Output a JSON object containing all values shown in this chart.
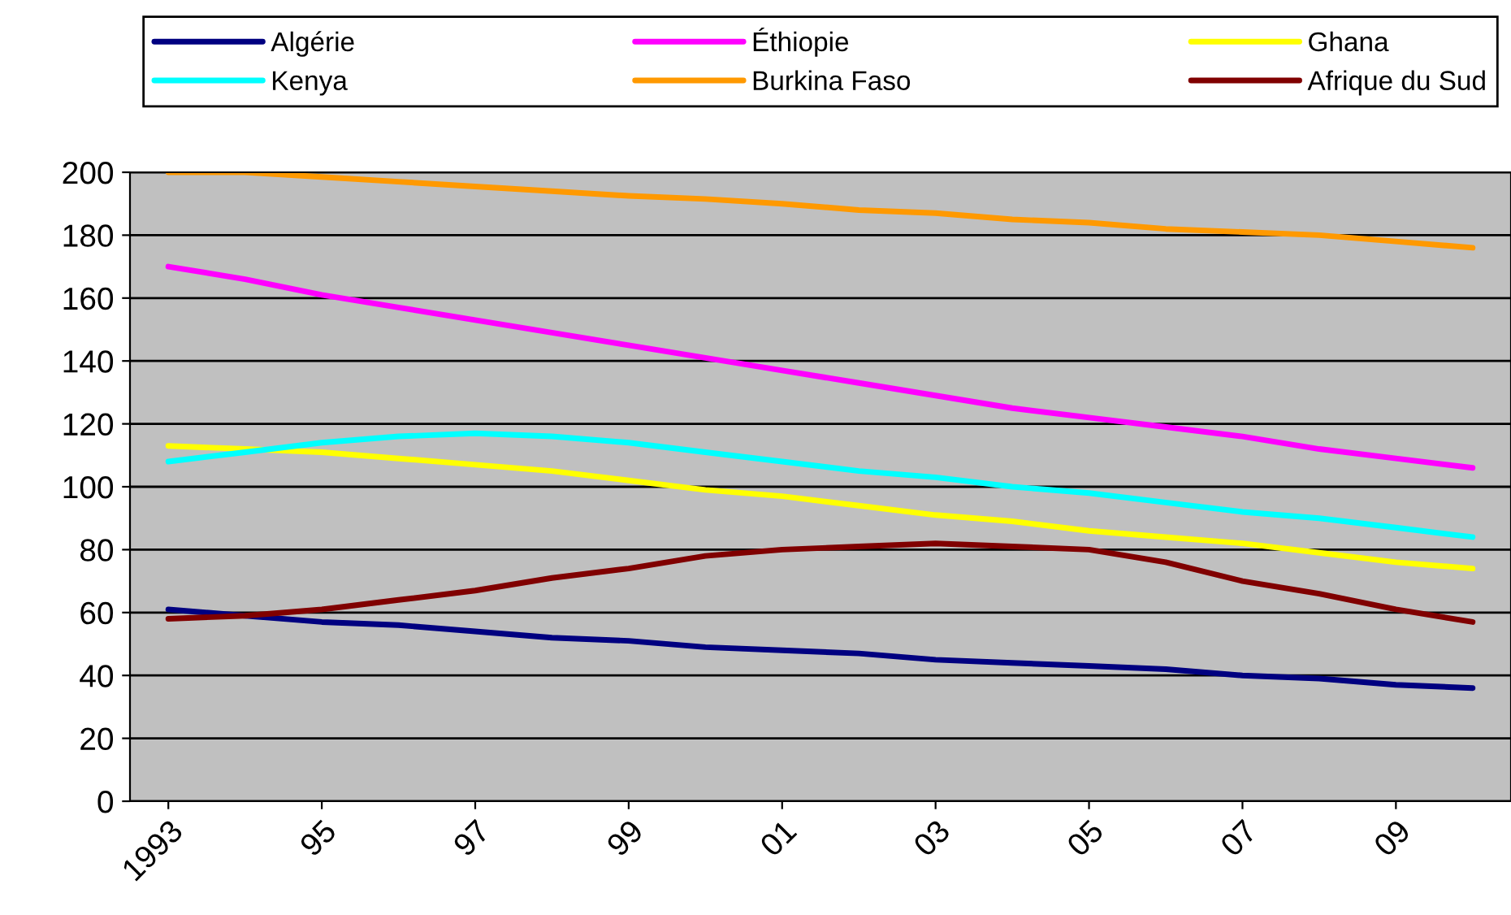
{
  "chart_data": {
    "type": "line",
    "categories": [
      "1993",
      null,
      "95",
      null,
      "97",
      null,
      "99",
      null,
      "01",
      null,
      "03",
      null,
      "05",
      null,
      "07",
      null,
      "09",
      null
    ],
    "ylim": [
      0,
      200
    ],
    "yticks": [
      0,
      20,
      40,
      60,
      80,
      100,
      120,
      140,
      160,
      180,
      200
    ],
    "grid": "y",
    "legend": "top",
    "marker": "none",
    "line_style": "solid",
    "series": [
      {
        "name": "Algérie",
        "color": "#000080",
        "values": [
          61,
          59,
          57,
          56,
          54,
          52,
          51,
          49,
          48,
          47,
          45,
          44,
          43,
          42,
          40,
          39,
          37,
          36
        ]
      },
      {
        "name": "Éthiopie",
        "color": "#ff00ff",
        "values": [
          170,
          166,
          161,
          157,
          153,
          149,
          145,
          141,
          137,
          133,
          129,
          125,
          122,
          119,
          116,
          112,
          109,
          106
        ]
      },
      {
        "name": "Ghana",
        "color": "#ffff00",
        "values": [
          113,
          112,
          111,
          109,
          107,
          105,
          102,
          99,
          97,
          94,
          91,
          89,
          86,
          84,
          82,
          79,
          76,
          74
        ]
      },
      {
        "name": "Kenya",
        "color": "#00ffff",
        "values": [
          108,
          111,
          114,
          116,
          117,
          116,
          114,
          111,
          108,
          105,
          103,
          100,
          98,
          95,
          92,
          90,
          87,
          84
        ]
      },
      {
        "name": "Burkina Faso",
        "color": "#ff9900",
        "values": [
          200,
          200,
          198.5,
          197,
          195.5,
          194,
          192.5,
          191.5,
          190,
          188,
          187,
          185,
          184,
          182,
          181,
          180,
          178,
          176
        ]
      },
      {
        "name": "Afrique du Sud",
        "color": "#800000",
        "values": [
          58,
          59,
          61,
          64,
          67,
          71,
          74,
          78,
          80,
          81,
          82,
          81,
          80,
          76,
          70,
          66,
          61,
          57
        ]
      }
    ]
  }
}
